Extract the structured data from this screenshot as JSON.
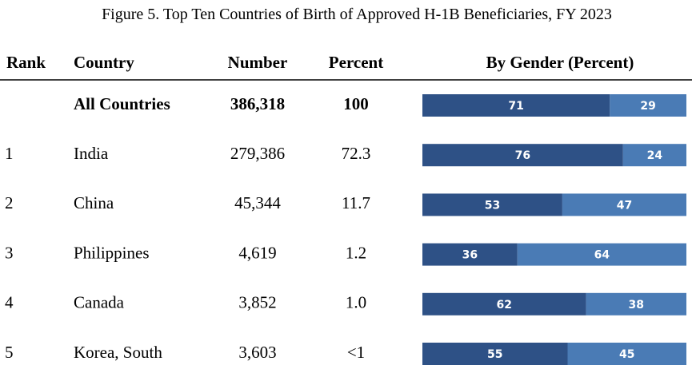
{
  "title": "Figure 5. Top Ten Countries of Birth of Approved H-1B Beneficiaries, FY 2023",
  "columns": [
    "Rank",
    "Country",
    "Number",
    "Percent",
    "By Gender (Percent)"
  ],
  "rows": [
    {
      "country": "All Countries",
      "number": "386,318",
      "percent": "100",
      "gender": [
        71,
        29
      ]
    },
    {
      "rank": "1",
      "country": "India",
      "number": "279,386",
      "percent": "72.3",
      "gender": [
        76,
        24
      ]
    },
    {
      "rank": "2",
      "country": "China",
      "number": "45,344",
      "percent": "11.7",
      "gender": [
        53,
        47
      ]
    },
    {
      "rank": "3",
      "country": "Philippines",
      "number": "4,619",
      "percent": "1.2",
      "gender": [
        36,
        64
      ]
    },
    {
      "rank": "4",
      "country": "Canada",
      "number": "3,852",
      "percent": "1.0",
      "gender": [
        62,
        38
      ]
    },
    {
      "rank": "5",
      "country": "Korea, South",
      "number": "3,603",
      "percent": "<1",
      "gender": [
        55,
        45
      ]
    }
  ]
}
